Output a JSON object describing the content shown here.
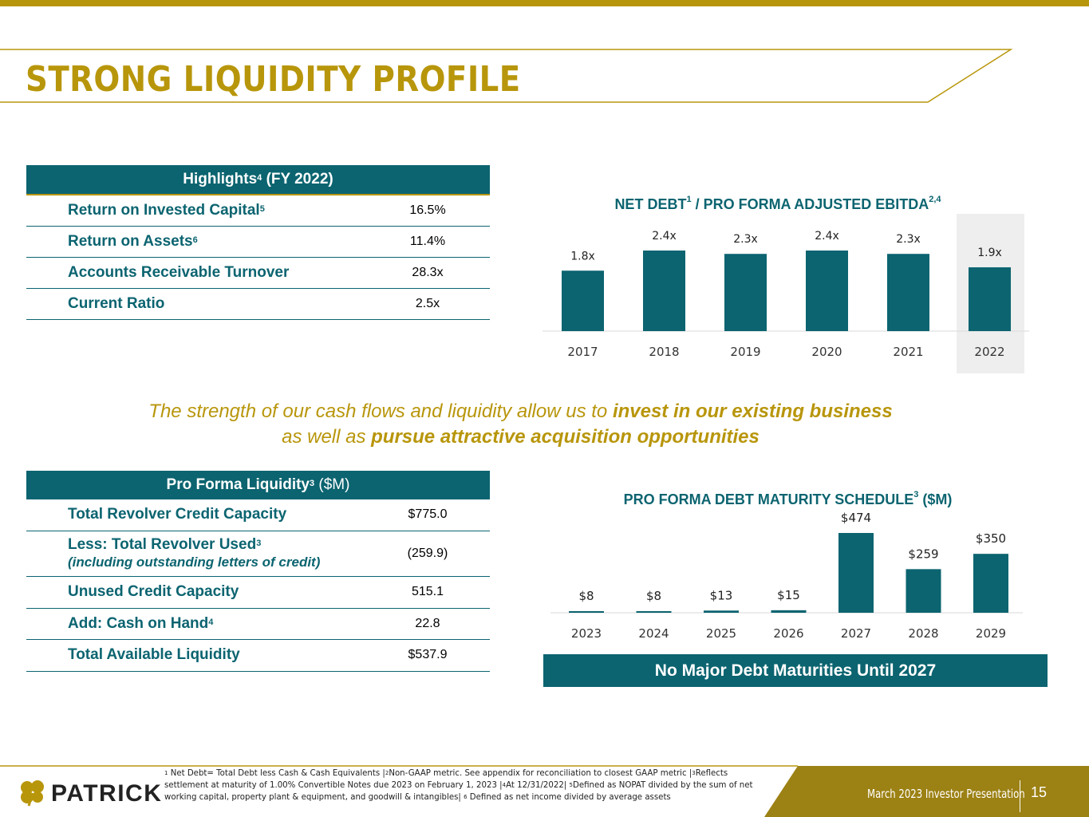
{
  "page_title": "STRONG LIQUIDITY PROFILE",
  "highlights": {
    "header": "Highlights",
    "header_sup": "4",
    "header_suffix": " (FY 2022)",
    "rows": [
      {
        "label": "Return on Invested Capital",
        "sup": "5",
        "value": "16.5%"
      },
      {
        "label": "Return on Assets",
        "sup": "6",
        "value": "11.4%"
      },
      {
        "label": "Accounts Receivable Turnover",
        "sup": "",
        "value": "28.3x"
      },
      {
        "label": "Current Ratio",
        "sup": "",
        "value": "2.5x"
      }
    ]
  },
  "liquidity": {
    "header": "Pro Forma Liquidity",
    "header_sup": "3",
    "header_suffix": " ($M)",
    "rows": [
      {
        "label": "Total Revolver Credit Capacity",
        "sup": "",
        "sub": "",
        "value": "$775.0"
      },
      {
        "label": "Less: Total Revolver Used",
        "sup": "3",
        "sub": "(including outstanding letters of credit)",
        "value": "(259.9)"
      },
      {
        "label": "Unused Credit Capacity",
        "sup": "",
        "sub": "",
        "value": "515.1"
      },
      {
        "label": "Add: Cash on Hand",
        "sup": "4",
        "sub": "",
        "value": "22.8"
      },
      {
        "label": "Total Available Liquidity",
        "sup": "",
        "sub": "",
        "value": "$537.9"
      }
    ]
  },
  "quote": {
    "line1_plain": "The strength of our cash flows and liquidity allow us to ",
    "line1_bold": "invest in our existing business",
    "line2_plain": "as well as ",
    "line2_bold": "pursue attractive acquisition opportunities"
  },
  "chart1_title": {
    "text": "NET DEBT",
    "sup1": "1",
    "mid": " / PRO FORMA ADJUSTED EBITDA",
    "sup2": "2,4"
  },
  "chart2_title": {
    "text": "PRO FORMA DEBT MATURITY SCHEDULE",
    "sup": "3",
    "suffix": " ($M)"
  },
  "banner": "No Major Debt Maturities Until 2027",
  "chart_data": [
    {
      "type": "bar",
      "title": "NET DEBT1 / PRO FORMA ADJUSTED EBITDA2,4",
      "categories": [
        "2017",
        "2018",
        "2019",
        "2020",
        "2021",
        "2022"
      ],
      "values": [
        1.8,
        2.4,
        2.3,
        2.4,
        2.3,
        1.9
      ],
      "labels": [
        "1.8x",
        "2.4x",
        "2.3x",
        "2.4x",
        "2.3x",
        "1.9x"
      ],
      "highlighted_category": "2022",
      "bar_color": "#0b6470",
      "highlight_color": "#eeeeee",
      "ylim": [
        0,
        2.4
      ]
    },
    {
      "type": "bar",
      "title": "PRO FORMA DEBT MATURITY SCHEDULE3 ($M)",
      "categories": [
        "2023",
        "2024",
        "2025",
        "2026",
        "2027",
        "2028",
        "2029"
      ],
      "values": [
        8,
        8,
        13,
        15,
        474,
        259,
        350
      ],
      "labels": [
        "$8",
        "$8",
        "$13",
        "$15",
        "$474",
        "$259",
        "$350"
      ],
      "bar_color": "#0b6470",
      "ylim": [
        0,
        474
      ]
    }
  ],
  "footer": {
    "footnote_parts": [
      {
        "sup": "1",
        "text": " Net Debt= Total Debt less Cash & Cash Equivalents |"
      },
      {
        "sup": "2",
        "text": "Non-GAAP metric. See appendix for reconciliation to closest GAAP metric |"
      },
      {
        "sup": "3",
        "text": "Reflects settlement at maturity of 1.00% Convertible Notes due 2023 on February 1, 2023 |"
      },
      {
        "sup": "4",
        "text": "At 12/31/2022| "
      },
      {
        "sup": "5",
        "text": "Defined as NOPAT divided by the sum of net working capital, property plant & equipment, and goodwill & intangibles| "
      },
      {
        "sup": "6",
        "text": " Defined as net income divided by average assets"
      }
    ],
    "logo_text": "PATRICK",
    "presentation": "March 2023 Investor Presentation",
    "page_number": "15"
  },
  "colors": {
    "teal": "#0b6470",
    "gold": "#b8960b",
    "footer_gold": "#9c8114"
  }
}
